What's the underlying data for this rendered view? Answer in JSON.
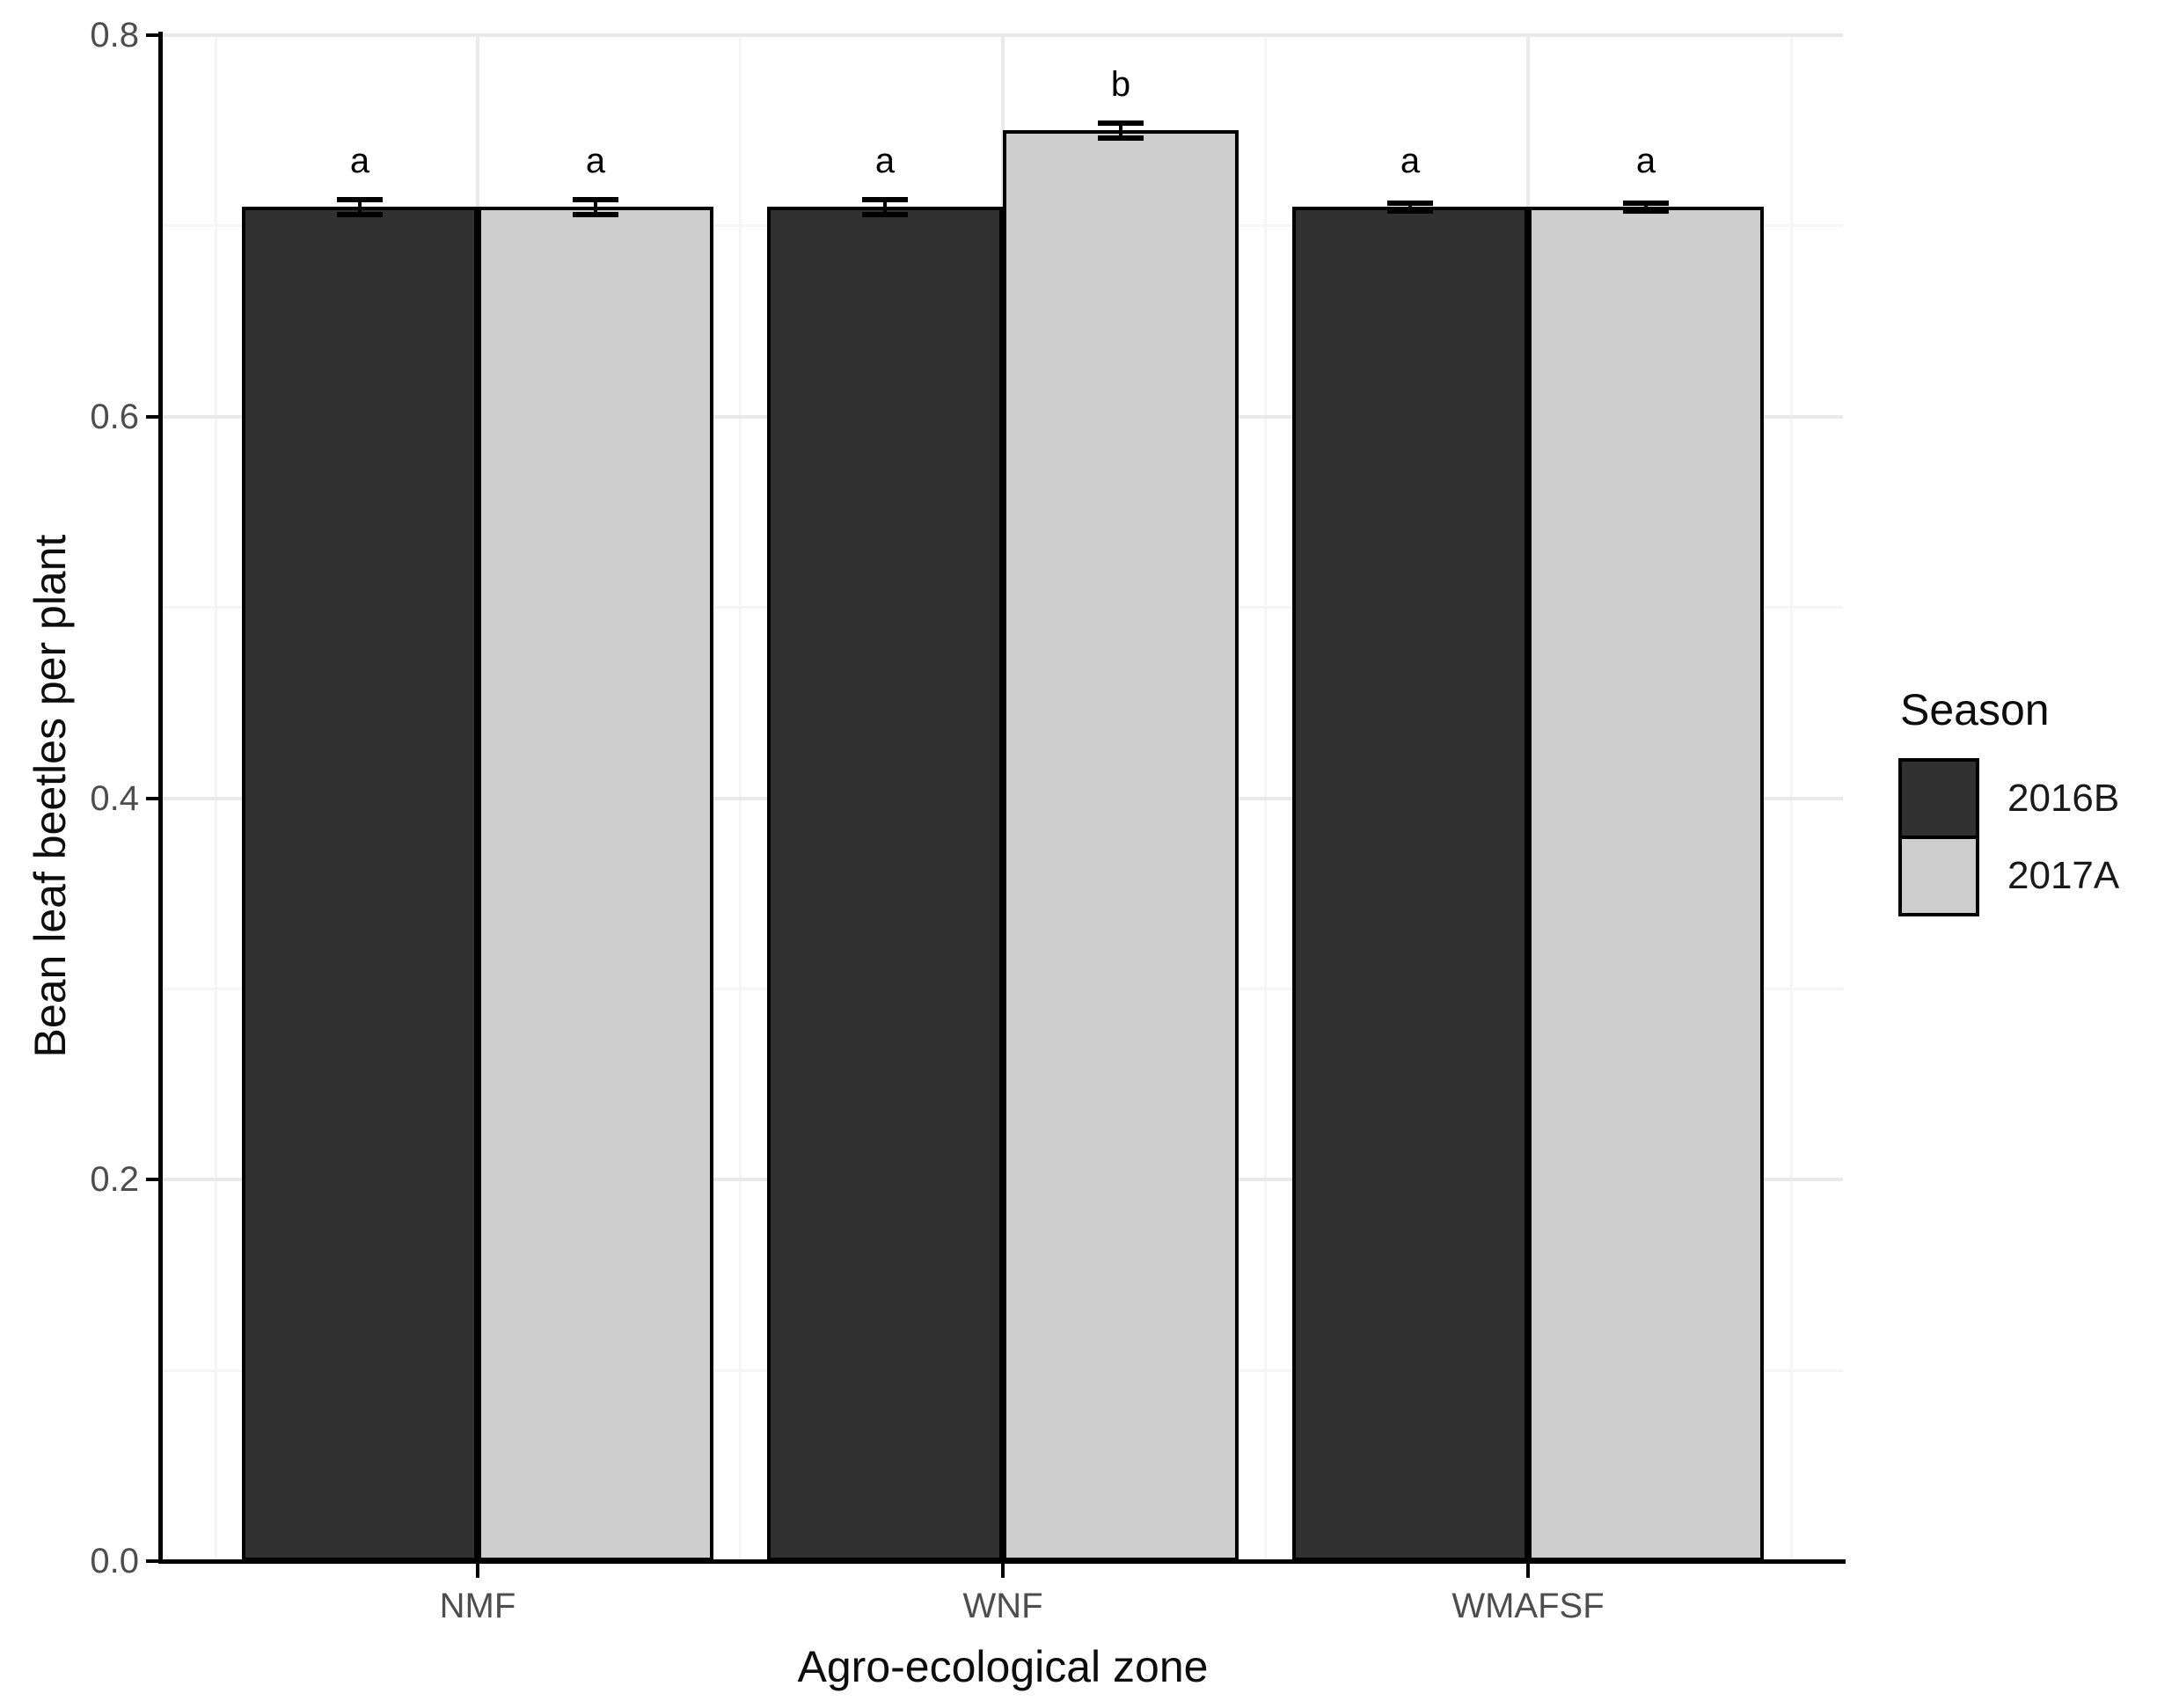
{
  "chart_data": {
    "type": "bar",
    "title": "",
    "xlabel": "Agro-ecological zone",
    "ylabel": "Bean leaf beetles per plant",
    "categories": [
      "NMF",
      "WNF",
      "WMAFSF"
    ],
    "series": [
      {
        "name": "2016B",
        "fill": "#313131",
        "values": [
          0.71,
          0.71,
          0.71
        ],
        "se": [
          0.004,
          0.004,
          0.002
        ],
        "letters": [
          "a",
          "a",
          "a"
        ]
      },
      {
        "name": "2017A",
        "fill": "#cecece",
        "values": [
          0.71,
          0.75,
          0.71
        ],
        "se": [
          0.004,
          0.004,
          0.002
        ],
        "letters": [
          "a",
          "b",
          "a"
        ]
      }
    ],
    "ylim": [
      0,
      0.8
    ],
    "yticks": [
      0.0,
      0.2,
      0.4,
      0.6,
      0.8
    ],
    "ytick_labels": [
      "0.0",
      "0.2",
      "0.4",
      "0.6",
      "0.8"
    ],
    "yticks_minor": [
      0.1,
      0.3,
      0.5,
      0.7
    ],
    "bar_outline": "#000000",
    "grid": {
      "show": true,
      "major_color": "#e9e9e9",
      "minor_color": "#f5f5f5",
      "background": "#ffffff"
    },
    "legend": {
      "title": "Season",
      "position": "right",
      "entries": [
        {
          "label": "2016B",
          "fill": "#313131"
        },
        {
          "label": "2017A",
          "fill": "#cecece"
        }
      ]
    }
  }
}
